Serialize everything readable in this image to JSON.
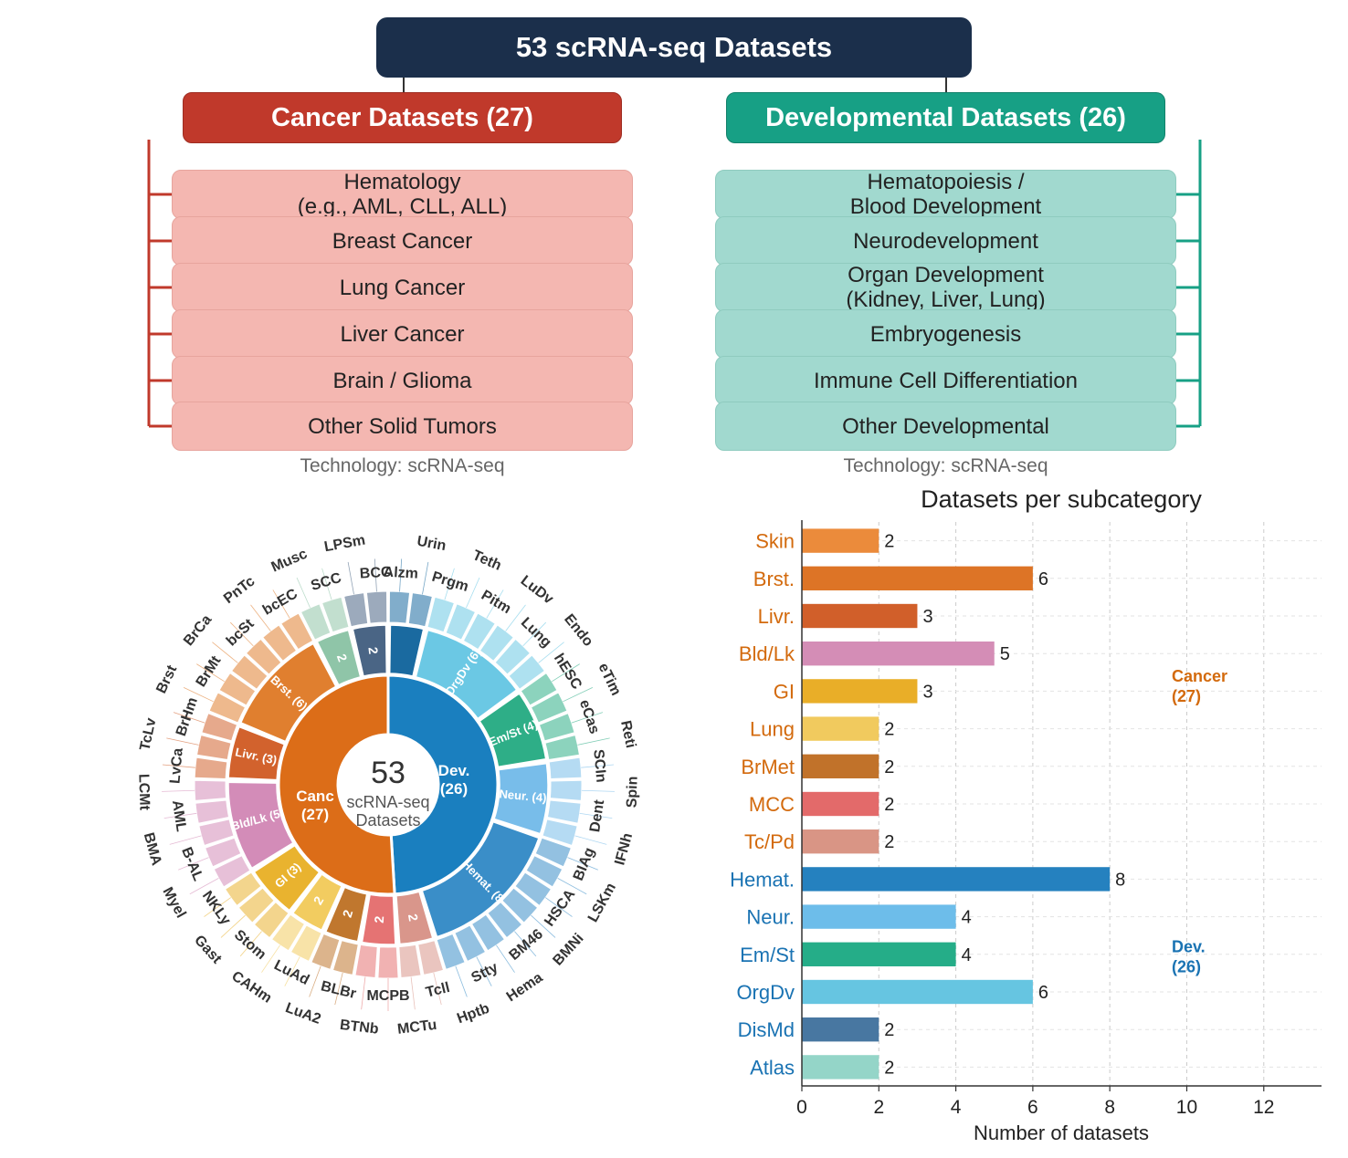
{
  "header": {
    "title": "53 scRNA-seq Datasets"
  },
  "cancer": {
    "heading": "Cancer Datasets (27)",
    "items": [
      "Hematology\n(e.g., AML, CLL, ALL)",
      "Breast Cancer",
      "Lung Cancer",
      "Liver Cancer",
      "Brain / Glioma",
      "Other Solid Tumors"
    ],
    "technology": "Technology: scRNA-seq",
    "color": "#c0392b"
  },
  "developmental": {
    "heading": "Developmental Datasets (26)",
    "items": [
      "Hematopoiesis /\nBlood Development",
      "Neurodevelopment",
      "Organ Development\n(Kidney, Liver, Lung)",
      "Embryogenesis",
      "Immune Cell Differentiation",
      "Other Developmental"
    ],
    "technology": "Technology: scRNA-seq",
    "color": "#17a085"
  },
  "sunburst": {
    "center": {
      "count": "53",
      "line1": "scRNA-seq",
      "line2": "Datasets"
    },
    "inner": [
      {
        "label": "Dev.\n(26)",
        "value": 26,
        "color": "#1a7fbf"
      },
      {
        "label": "Canc\n(27)",
        "value": 27,
        "color": "#dc6d18"
      }
    ],
    "middle": [
      {
        "label": "",
        "value": 2,
        "color": "#1a6aa0",
        "group": "dev"
      },
      {
        "label": "OrgDv (6)",
        "value": 6,
        "color": "#6bc8e4",
        "group": "dev"
      },
      {
        "label": "Em/St (4)",
        "value": 4,
        "color": "#2eae87",
        "group": "dev"
      },
      {
        "label": "Neur. (4)",
        "value": 4,
        "color": "#78bdea",
        "group": "dev"
      },
      {
        "label": "Hemat. (8",
        "value": 8,
        "color": "#3a8ec8",
        "group": "dev"
      },
      {
        "label": "2",
        "value": 2,
        "color": "#d9968b",
        "group": "canc"
      },
      {
        "label": "2",
        "value": 2,
        "color": "#e57373",
        "group": "canc"
      },
      {
        "label": "2",
        "value": 2,
        "color": "#c0772e",
        "group": "canc"
      },
      {
        "label": "2",
        "value": 2,
        "color": "#f2cc60",
        "group": "canc"
      },
      {
        "label": "GI (3)",
        "value": 3,
        "color": "#e9b32f",
        "group": "canc"
      },
      {
        "label": "Bld/Lk (5)",
        "value": 5,
        "color": "#d38cb8",
        "group": "canc"
      },
      {
        "label": "Livr. (3)",
        "value": 3,
        "color": "#d2622d",
        "group": "canc"
      },
      {
        "label": "Brst. (6)",
        "value": 6,
        "color": "#e07f2f",
        "group": "canc"
      },
      {
        "label": "2",
        "value": 2,
        "color": "#8fc5a8",
        "group": "canc"
      },
      {
        "label": "2",
        "value": 2,
        "color": "#4a6585",
        "group": "dev"
      }
    ],
    "outer_labels": [
      "Alzm",
      "Urin",
      "Prgm",
      "Teth",
      "Pitm",
      "LuDv",
      "Lung",
      "Endo",
      "hESC",
      "eTim",
      "eCas",
      "Reti",
      "SCIn",
      "Spin",
      "Dent",
      "IFNh",
      "BIAg",
      "LSKm",
      "HSCA",
      "BMNi",
      "BM46",
      "Hema",
      "Stty",
      "Hptb",
      "Tcll",
      "MCTu",
      "MCPB",
      "BTNb",
      "BLBr",
      "LuA2",
      "LuAd",
      "CAHm",
      "Stom",
      "Gast",
      "NKLy",
      "Myel",
      "B-AL",
      "BMA",
      "AML",
      "LCMt",
      "LvCa",
      "TcLv",
      "BrHm",
      "Brst",
      "BrMt",
      "BrCa",
      "bcSt",
      "PnTc",
      "bcEC",
      "Musc",
      "SCC",
      "LPSm",
      "BCC"
    ]
  },
  "chart_data": {
    "type": "bar",
    "title": "Datasets per subcategory",
    "xlabel": "Number of datasets",
    "ylabel": "",
    "xlim": [
      0,
      13.5
    ],
    "xticks": [
      0,
      2,
      4,
      6,
      8,
      10,
      12
    ],
    "grid": true,
    "categories": [
      "Skin",
      "Brst.",
      "Livr.",
      "Bld/Lk",
      "GI",
      "Lung",
      "BrMet",
      "MCC",
      "Tc/Pd",
      "Hemat.",
      "Neur.",
      "Em/St",
      "OrgDv",
      "DisMd",
      "Atlas"
    ],
    "values": [
      2,
      6,
      3,
      5,
      3,
      2,
      2,
      2,
      2,
      8,
      4,
      4,
      6,
      2,
      2
    ],
    "bar_colors": [
      "#eb8b3b",
      "#dd7426",
      "#d15f2a",
      "#d48db6",
      "#e9ae28",
      "#f1ca5e",
      "#c1722a",
      "#e36a6a",
      "#d99585",
      "#2581bf",
      "#6dbdea",
      "#25ad88",
      "#66c5e1",
      "#4877a1",
      "#94d5c8"
    ],
    "label_colors": {
      "cancer": "#d36a0d",
      "dev": "#1a73b3"
    },
    "group_sizes": [
      9,
      6
    ],
    "annotations": [
      {
        "text": "Cancer\n(27)",
        "group": "cancer"
      },
      {
        "text": "Dev.\n(26)",
        "group": "dev"
      }
    ]
  }
}
